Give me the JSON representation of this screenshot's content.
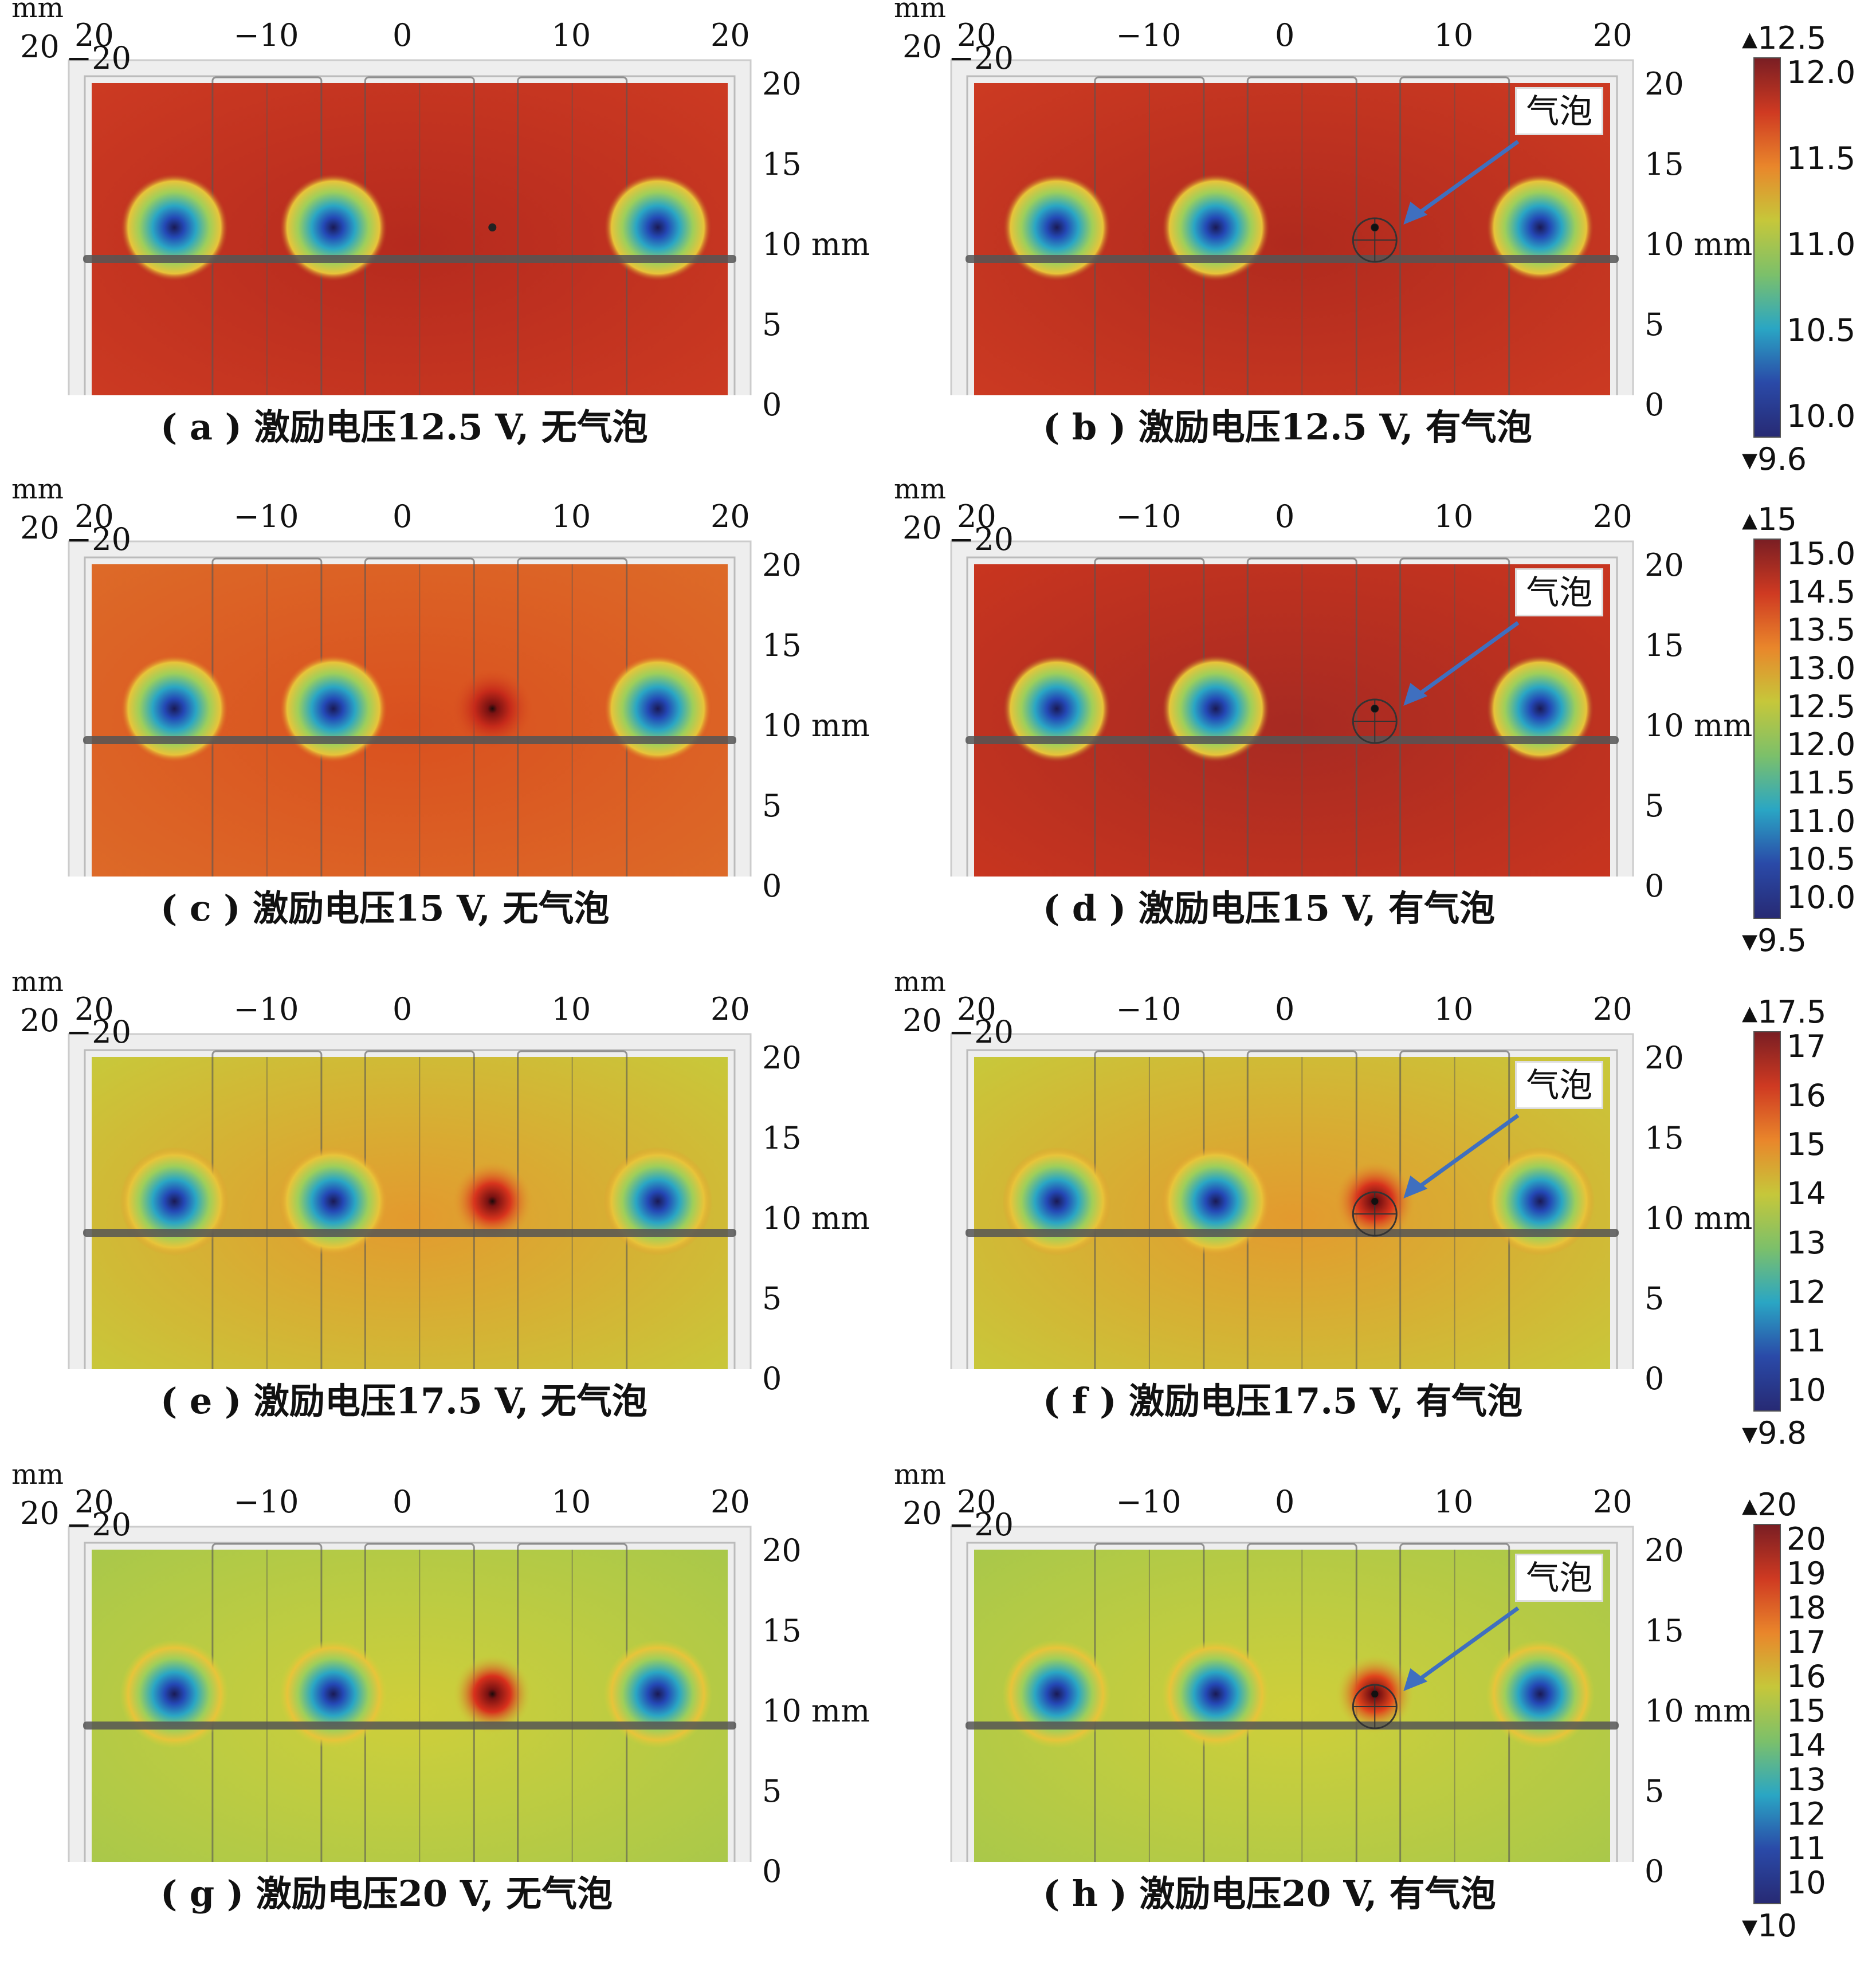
{
  "axis_unit": "mm",
  "bubble_label": "气泡",
  "panels": [
    {
      "caption": "( a ) 激励电压12.5 V, 无气泡",
      "bubble": false,
      "bg": "#cc3a22",
      "center": "#b52a1e",
      "hot": "#c23520",
      "hotSpot": false
    },
    {
      "caption": "( b ) 激励电压12.5 V, 有气泡",
      "bubble": true,
      "bg": "#cc3a22",
      "center": "#b02a1e",
      "hot": "#b02a1e",
      "hotSpot": false
    },
    {
      "caption": "( c ) 激励电压15 V, 无气泡",
      "bubble": false,
      "bg": "#dd6a28",
      "center": "#d9501f",
      "hot": "#c62a1a",
      "hotSpot": true
    },
    {
      "caption": "( d ) 激励电压15 V, 有气泡",
      "bubble": true,
      "bg": "#c8351f",
      "center": "#a72a22",
      "hot": "#a02823",
      "hotSpot": false
    },
    {
      "caption": "( e ) 激励电压17.5 V, 无气泡",
      "bubble": false,
      "bg": "#c8c83a",
      "center": "#e39a2e",
      "hot": "#d8341d",
      "hotSpot": true
    },
    {
      "caption": "( f ) 激励电压17.5 V, 有气泡",
      "bubble": true,
      "bg": "#c8c83a",
      "center": "#e39a2e",
      "hot": "#d8341d",
      "hotSpot": true
    },
    {
      "caption": "( g ) 激励电压20 V, 无气泡",
      "bubble": false,
      "bg": "#a9c84a",
      "center": "#cfcf3a",
      "hot": "#d8301c",
      "hotSpot": true
    },
    {
      "caption": "( h ) 激励电压20 V, 有气泡",
      "bubble": true,
      "bg": "#a9c84a",
      "center": "#cfcf3a",
      "hot": "#e0451c",
      "hotSpot": true
    }
  ],
  "top_ticks": [
    "20",
    "−10",
    "0",
    "10",
    "20"
  ],
  "right_ticks": [
    "20",
    "15",
    "10",
    "5",
    "0"
  ],
  "corner_labels": [
    "mm",
    "20",
    "−20"
  ],
  "colorbars": [
    {
      "top": "▴12.5",
      "bottom": "▾9.6",
      "labels": [
        "12.0",
        "11.5",
        "11.0",
        "10.5",
        "10.0"
      ],
      "colors": [
        "#7a1e23",
        "#cf3a22",
        "#e9862b",
        "#c6c73a",
        "#7cc06a",
        "#2aa6c4",
        "#2a4aa8",
        "#272a74"
      ]
    },
    {
      "top": "▴15",
      "bottom": "▾9.5",
      "labels": [
        "15.0",
        "14.5",
        "13.5",
        "13.0",
        "12.5",
        "12.0",
        "11.5",
        "11.0",
        "10.5",
        "10.0"
      ],
      "colors": [
        "#7a1e23",
        "#cf3a22",
        "#e9862b",
        "#c6c73a",
        "#7cc06a",
        "#2aa6c4",
        "#2a4aa8",
        "#272a74"
      ]
    },
    {
      "top": "▴17.5",
      "bottom": "▾9.8",
      "labels": [
        "17",
        "16",
        "15",
        "14",
        "13",
        "12",
        "11",
        "10"
      ],
      "colors": [
        "#7a1e23",
        "#cf3a22",
        "#e9862b",
        "#c6c73a",
        "#7cc06a",
        "#2aa6c4",
        "#2a4aa8",
        "#272a74"
      ]
    },
    {
      "top": "▴20",
      "bottom": "▾10",
      "labels": [
        "20",
        "19",
        "18",
        "17",
        "16",
        "15",
        "14",
        "13",
        "12",
        "11",
        "10"
      ],
      "colors": [
        "#7a1e23",
        "#cf3a22",
        "#e9862b",
        "#c6c73a",
        "#7cc06a",
        "#2aa6c4",
        "#2a4aa8",
        "#272a74"
      ]
    }
  ]
}
